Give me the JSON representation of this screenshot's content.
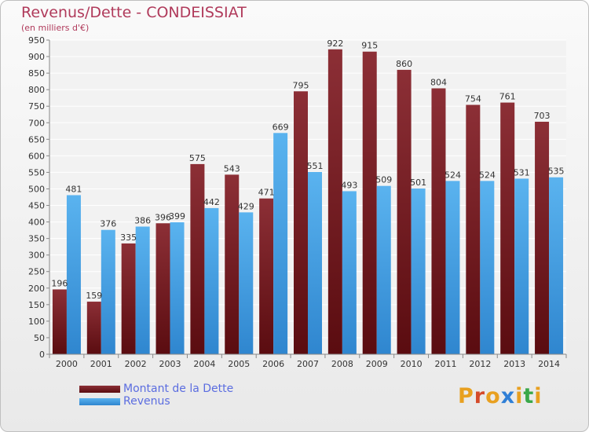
{
  "header": {
    "title": "Revenus/Dette - CONDEISSIAT",
    "subtitle": "(en milliers d'€)"
  },
  "legend": {
    "items": [
      {
        "label": "Montant de la Dette",
        "color": "#7a1f24"
      },
      {
        "label": "Revenus",
        "color": "#4aa6e6"
      }
    ]
  },
  "logo": {
    "letters": [
      "P",
      "r",
      "o",
      "x",
      "i",
      "t",
      "i"
    ],
    "colors": [
      "#e8a020",
      "#d44a2a",
      "#e8a020",
      "#2f7fd6",
      "#e8a020",
      "#3aa84a",
      "#e8a020"
    ]
  },
  "chart_data": {
    "type": "bar",
    "title": "Revenus/Dette - CONDEISSIAT",
    "subtitle": "(en milliers d'€)",
    "categories": [
      "2000",
      "2001",
      "2002",
      "2003",
      "2004",
      "2005",
      "2006",
      "2007",
      "2008",
      "2009",
      "2010",
      "2011",
      "2012",
      "2013",
      "2014"
    ],
    "series": [
      {
        "name": "Montant de la Dette",
        "color": "#7a1f24",
        "values": [
          196,
          159,
          335,
          396,
          575,
          543,
          471,
          795,
          922,
          915,
          860,
          804,
          754,
          761,
          703
        ]
      },
      {
        "name": "Revenus",
        "color": "#4aa6e6",
        "values": [
          481,
          376,
          386,
          399,
          442,
          429,
          669,
          551,
          493,
          509,
          501,
          524,
          524,
          531,
          535
        ]
      }
    ],
    "ylim": [
      0,
      950
    ],
    "ytick_step": 50,
    "grid": true,
    "legend_position": "bottom-left"
  }
}
